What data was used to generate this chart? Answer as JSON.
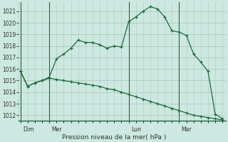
{
  "background_color": "#cce8e0",
  "plot_bg_color": "#cce8e0",
  "grid_color": "#b0c8c0",
  "line_color": "#1a6b3a",
  "marker_color": "#1a6b3a",
  "xlabel": "Pression niveau de la mer( hPa )",
  "ylim": [
    1011.5,
    1021.8
  ],
  "yticks": [
    1012,
    1013,
    1014,
    1015,
    1016,
    1017,
    1018,
    1019,
    1020,
    1021
  ],
  "day_labels": [
    "Dim",
    "Mer",
    "Lun",
    "Mar"
  ],
  "day_positions": [
    0,
    8,
    30,
    44
  ],
  "xlim": [
    -0.5,
    57
  ],
  "series1_x": [
    0,
    2,
    4,
    6,
    8,
    10,
    12,
    14,
    16,
    18,
    20,
    22,
    24,
    26,
    28,
    30,
    32,
    34,
    36,
    38,
    40,
    42,
    44,
    46,
    48,
    50,
    52,
    54,
    56
  ],
  "series1_y": [
    1015.8,
    1014.5,
    1014.8,
    1015.0,
    1015.3,
    1016.9,
    1017.3,
    1017.8,
    1018.5,
    1018.3,
    1018.3,
    1018.1,
    1017.8,
    1018.0,
    1017.9,
    1020.1,
    1020.5,
    1021.0,
    1021.4,
    1021.2,
    1020.5,
    1019.3,
    1019.2,
    1018.9,
    1017.3,
    1016.6,
    1015.8,
    1012.1,
    1011.7
  ],
  "series2_x": [
    0,
    2,
    4,
    6,
    8,
    10,
    12,
    14,
    16,
    18,
    20,
    22,
    24,
    26,
    28,
    30,
    32,
    34,
    36,
    38,
    40,
    42,
    44,
    46,
    48,
    50,
    52,
    54,
    56
  ],
  "series2_y": [
    1015.8,
    1014.5,
    1014.8,
    1015.0,
    1015.2,
    1015.1,
    1015.0,
    1014.9,
    1014.8,
    1014.7,
    1014.6,
    1014.5,
    1014.3,
    1014.2,
    1014.0,
    1013.8,
    1013.6,
    1013.4,
    1013.2,
    1013.0,
    1012.8,
    1012.6,
    1012.4,
    1012.2,
    1012.0,
    1011.9,
    1011.8,
    1011.7,
    1011.6
  ]
}
